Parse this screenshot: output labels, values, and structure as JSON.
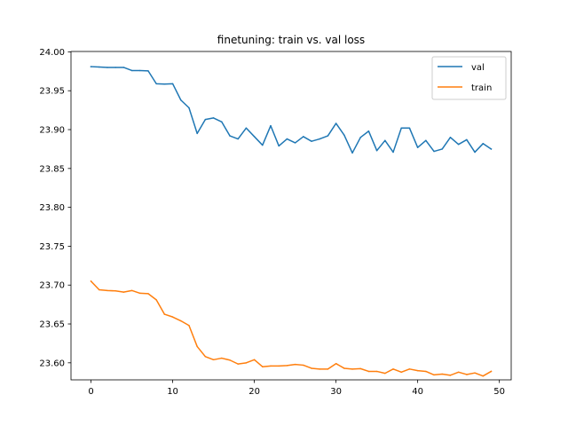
{
  "chart_data": {
    "type": "line",
    "title": "finetuning: train vs. val loss",
    "xlabel": "",
    "ylabel": "",
    "xlim": [
      -2.45,
      51.45
    ],
    "ylim": [
      23.5781,
      24.0005
    ],
    "xticks": [
      0,
      10,
      20,
      30,
      40,
      50
    ],
    "yticks": [
      23.6,
      23.65,
      23.7,
      23.75,
      23.8,
      23.85,
      23.9,
      23.95,
      24.0
    ],
    "grid": false,
    "legend": "top-right",
    "x": [
      0,
      1,
      2,
      3,
      4,
      5,
      6,
      7,
      8,
      9,
      10,
      11,
      12,
      13,
      14,
      15,
      16,
      17,
      18,
      19,
      20,
      21,
      22,
      23,
      24,
      25,
      26,
      27,
      28,
      29,
      30,
      31,
      32,
      33,
      34,
      35,
      36,
      37,
      38,
      39,
      40,
      41,
      42,
      43,
      44,
      45,
      46,
      47,
      48,
      49
    ],
    "series": [
      {
        "name": "val",
        "color": "#1f77b4",
        "values": [
          23.981,
          23.9805,
          23.98,
          23.98,
          23.98,
          23.976,
          23.976,
          23.9755,
          23.959,
          23.9585,
          23.959,
          23.938,
          23.928,
          23.895,
          23.913,
          23.915,
          23.91,
          23.892,
          23.888,
          23.902,
          23.891,
          23.88,
          23.905,
          23.879,
          23.888,
          23.883,
          23.891,
          23.885,
          23.888,
          23.892,
          23.908,
          23.893,
          23.87,
          23.89,
          23.898,
          23.873,
          23.886,
          23.871,
          23.902,
          23.902,
          23.877,
          23.886,
          23.872,
          23.875,
          23.89,
          23.881,
          23.887,
          23.871,
          23.882,
          23.875
        ]
      },
      {
        "name": "train",
        "color": "#ff7f0e",
        "values": [
          23.705,
          23.694,
          23.693,
          23.6925,
          23.691,
          23.693,
          23.6895,
          23.689,
          23.681,
          23.6625,
          23.659,
          23.654,
          23.648,
          23.621,
          23.608,
          23.604,
          23.606,
          23.6035,
          23.5985,
          23.6,
          23.604,
          23.595,
          23.596,
          23.596,
          23.5965,
          23.598,
          23.597,
          23.593,
          23.592,
          23.592,
          23.599,
          23.593,
          23.592,
          23.5925,
          23.589,
          23.589,
          23.5865,
          23.592,
          23.588,
          23.592,
          23.59,
          23.589,
          23.5845,
          23.5855,
          23.584,
          23.588,
          23.585,
          23.587,
          23.583,
          23.589
        ]
      }
    ]
  }
}
